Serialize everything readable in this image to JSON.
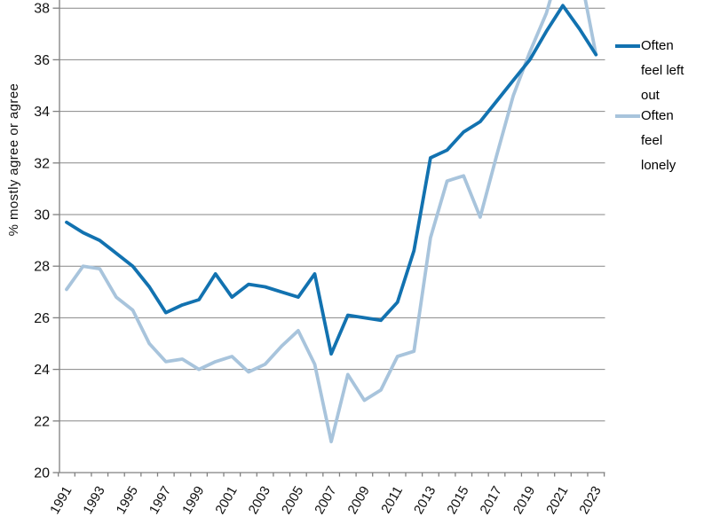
{
  "figure": {
    "background": "#ffffff",
    "y_axis_title": "% mostly agree or agree",
    "legend": [
      {
        "label": "Often feel left out",
        "color": "#1272b0"
      },
      {
        "label": "Often feel lonely",
        "color": "#a8c4dc"
      }
    ]
  },
  "chart_data": {
    "type": "line",
    "title": "",
    "xlabel": "",
    "ylabel": "% mostly agree or agree",
    "ylim": [
      20,
      38.3
    ],
    "yticks": [
      20,
      22,
      24,
      26,
      28,
      30,
      32,
      34,
      36,
      38
    ],
    "grid": true,
    "legend_position": "right",
    "x": [
      1991,
      1992,
      1993,
      1994,
      1995,
      1996,
      1997,
      1998,
      1999,
      2000,
      2001,
      2002,
      2003,
      2004,
      2005,
      2006,
      2007,
      2008,
      2009,
      2010,
      2011,
      2012,
      2013,
      2014,
      2015,
      2016,
      2017,
      2018,
      2019,
      2020,
      2021,
      2022,
      2023
    ],
    "x_tick_labels": [
      "1991",
      "1993",
      "1995",
      "1997",
      "1999",
      "2001",
      "2003",
      "2005",
      "2007",
      "2009",
      "2011",
      "2013",
      "2015",
      "2017",
      "2019",
      "2021",
      "2023"
    ],
    "series": [
      {
        "name": "Often feel left out",
        "color": "#1272b0",
        "values": [
          29.7,
          29.3,
          29.0,
          28.5,
          28.0,
          27.2,
          26.2,
          26.5,
          26.7,
          27.7,
          26.8,
          27.3,
          27.2,
          27.0,
          26.8,
          27.7,
          24.6,
          26.1,
          26.0,
          25.9,
          26.6,
          28.6,
          32.2,
          32.5,
          33.2,
          33.6,
          34.4,
          35.2,
          36.0,
          37.1,
          38.1,
          37.2,
          36.2
        ]
      },
      {
        "name": "Often feel lonely",
        "color": "#a8c4dc",
        "values": [
          27.1,
          28.0,
          27.9,
          26.8,
          26.3,
          25.0,
          24.3,
          24.4,
          24.0,
          24.3,
          24.5,
          23.9,
          24.2,
          24.9,
          25.5,
          24.2,
          21.2,
          23.8,
          22.8,
          23.2,
          24.5,
          24.7,
          29.1,
          31.3,
          31.5,
          29.9,
          32.3,
          34.6,
          36.3,
          37.8,
          40.0,
          39.5,
          36.2
        ]
      }
    ]
  }
}
